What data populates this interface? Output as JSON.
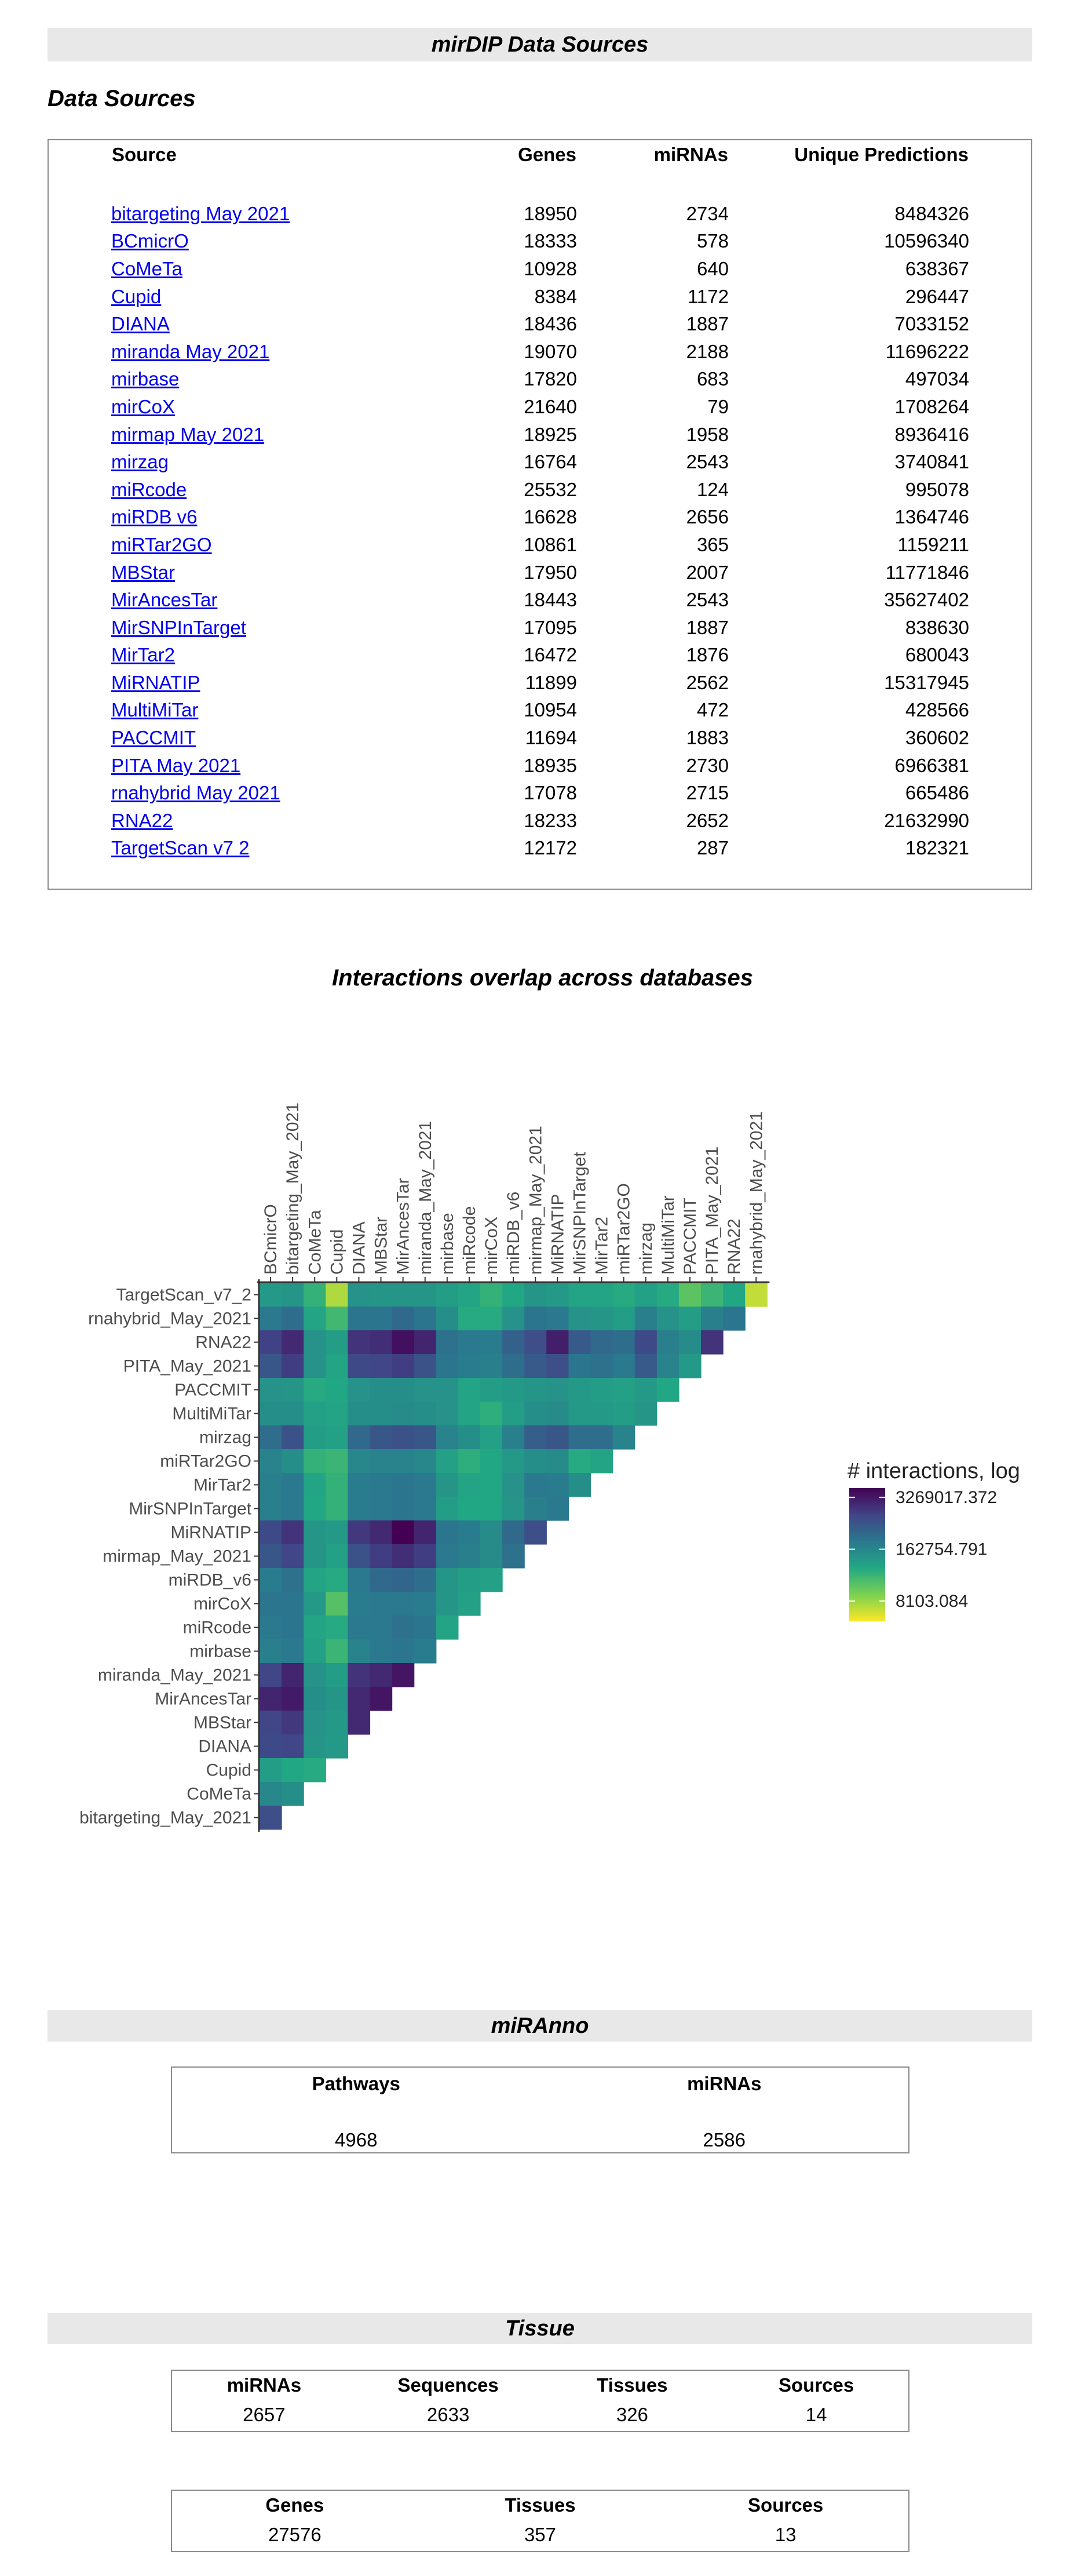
{
  "header": {
    "title": "mirDIP Data Sources"
  },
  "data_sources": {
    "subtitle": "Data Sources",
    "columns": [
      "Source",
      "Genes",
      "miRNAs",
      "Unique Predictions"
    ],
    "rows": [
      [
        "bitargeting May 2021",
        "18950",
        "2734",
        "8484326"
      ],
      [
        "BCmicrO",
        "18333",
        "578",
        "10596340"
      ],
      [
        "CoMeTa",
        "10928",
        "640",
        "638367"
      ],
      [
        "Cupid",
        "8384",
        "1172",
        "296447"
      ],
      [
        "DIANA",
        "18436",
        "1887",
        "7033152"
      ],
      [
        "miranda May 2021",
        "19070",
        "2188",
        "11696222"
      ],
      [
        "mirbase",
        "17820",
        "683",
        "497034"
      ],
      [
        "mirCoX",
        "21640",
        "79",
        "1708264"
      ],
      [
        "mirmap May 2021",
        "18925",
        "1958",
        "8936416"
      ],
      [
        "mirzag",
        "16764",
        "2543",
        "3740841"
      ],
      [
        "miRcode",
        "25532",
        "124",
        "995078"
      ],
      [
        "miRDB v6",
        "16628",
        "2656",
        "1364746"
      ],
      [
        "miRTar2GO",
        "10861",
        "365",
        "1159211"
      ],
      [
        "MBStar",
        "17950",
        "2007",
        "11771846"
      ],
      [
        "MirAncesTar",
        "18443",
        "2543",
        "35627402"
      ],
      [
        "MirSNPInTarget",
        "17095",
        "1887",
        "838630"
      ],
      [
        "MirTar2",
        "16472",
        "1876",
        "680043"
      ],
      [
        "MiRNATIP",
        "11899",
        "2562",
        "15317945"
      ],
      [
        "MultiMiTar",
        "10954",
        "472",
        "428566"
      ],
      [
        "PACCMIT",
        "11694",
        "1883",
        "360602"
      ],
      [
        "PITA May 2021",
        "18935",
        "2730",
        "6966381"
      ],
      [
        "rnahybrid May 2021",
        "17078",
        "2715",
        "665486"
      ],
      [
        "RNA22",
        "18233",
        "2652",
        "21632990"
      ],
      [
        "TargetScan v7 2",
        "12172",
        "287",
        "182321"
      ]
    ]
  },
  "overlap": {
    "title": "Interactions overlap across databases",
    "legend_title": "# interactions, log",
    "legend_labels": [
      "3269017.372",
      "162754.791",
      "8103.084"
    ],
    "legend_values": [
      3269017.372,
      162754.791,
      8103.084
    ],
    "colors": [
      "#fde725",
      "#7ad151",
      "#22a884",
      "#2a788e",
      "#414487",
      "#440154"
    ]
  },
  "chart_data": {
    "type": "heatmap",
    "x": [
      "BCmicrO",
      "bitargeting_May_2021",
      "CoMeTa",
      "Cupid",
      "DIANA",
      "MBStar",
      "MirAncesTar",
      "miranda_May_2021",
      "mirbase",
      "miRcode",
      "mirCoX",
      "miRDB_v6",
      "mirmap_May_2021",
      "MiRNATIP",
      "MirSNPInTarget",
      "MirTar2",
      "miRTar2GO",
      "mirzag",
      "MultiMiTar",
      "PACCMIT",
      "PITA_May_2021",
      "RNA22",
      "rnahybrid_May_2021"
    ],
    "y": [
      "TargetScan_v7_2",
      "rnahybrid_May_2021",
      "RNA22",
      "PITA_May_2021",
      "PACCMIT",
      "MultiMiTar",
      "mirzag",
      "miRTar2GO",
      "MirTar2",
      "MirSNPInTarget",
      "MiRNATIP",
      "mirmap_May_2021",
      "miRDB_v6",
      "mirCoX",
      "miRcode",
      "mirbase",
      "miranda_May_2021",
      "MirAncesTar",
      "MBStar",
      "DIANA",
      "Cupid",
      "CoMeTa",
      "bitargeting_May_2021"
    ],
    "values": [
      [
        4.95,
        5.0,
        4.6,
        3.8,
        5.05,
        5.0,
        5.0,
        5.0,
        4.9,
        4.8,
        4.6,
        4.75,
        5.0,
        4.95,
        4.8,
        4.8,
        4.7,
        4.85,
        4.7,
        4.3,
        4.55,
        4.75,
        3.7
      ],
      [
        5.4,
        5.55,
        4.8,
        4.5,
        5.45,
        5.45,
        5.6,
        5.45,
        5.1,
        4.7,
        4.7,
        5.05,
        5.45,
        5.4,
        5.05,
        5.0,
        4.9,
        5.3,
        5.05,
        4.9,
        5.3,
        5.45,
        null
      ],
      [
        6.1,
        6.35,
        5.05,
        4.9,
        6.25,
        6.3,
        6.6,
        6.4,
        5.5,
        5.4,
        5.35,
        5.7,
        5.95,
        6.45,
        5.8,
        5.6,
        5.55,
        6.0,
        5.3,
        5.15,
        6.25,
        null,
        null
      ],
      [
        5.85,
        6.15,
        5.05,
        4.8,
        6.0,
        6.05,
        6.15,
        5.9,
        5.45,
        5.35,
        5.3,
        5.55,
        5.8,
        5.95,
        5.45,
        5.5,
        5.4,
        5.8,
        5.25,
        4.95,
        null,
        null,
        null
      ],
      [
        5.05,
        5.0,
        4.7,
        4.75,
        5.05,
        5.1,
        5.1,
        5.05,
        5.05,
        4.8,
        4.9,
        4.95,
        5.0,
        5.05,
        4.95,
        4.9,
        4.85,
        4.95,
        4.75,
        null,
        null,
        null,
        null
      ],
      [
        5.1,
        5.1,
        4.85,
        4.8,
        5.1,
        5.1,
        5.15,
        5.1,
        5.05,
        4.8,
        4.65,
        4.9,
        5.1,
        5.15,
        4.95,
        4.95,
        4.9,
        5.0,
        null,
        null,
        null,
        null,
        null
      ],
      [
        5.55,
        5.9,
        4.9,
        4.85,
        5.6,
        5.85,
        5.9,
        5.85,
        5.25,
        5.1,
        4.85,
        5.3,
        5.75,
        5.85,
        5.55,
        5.55,
        5.25,
        null,
        null,
        null,
        null,
        null,
        null
      ],
      [
        5.25,
        5.1,
        4.6,
        4.55,
        5.2,
        5.25,
        5.25,
        5.2,
        4.85,
        4.65,
        4.75,
        4.95,
        5.1,
        5.15,
        4.7,
        4.8,
        null,
        null,
        null,
        null,
        null,
        null,
        null
      ],
      [
        5.3,
        5.4,
        4.8,
        4.6,
        5.35,
        5.4,
        5.45,
        5.4,
        5.0,
        4.8,
        4.75,
        5.05,
        5.4,
        5.35,
        5.1,
        null,
        null,
        null,
        null,
        null,
        null,
        null,
        null
      ],
      [
        5.3,
        5.4,
        4.75,
        4.6,
        5.35,
        5.4,
        5.45,
        5.4,
        4.9,
        4.75,
        4.75,
        5.0,
        5.3,
        5.4,
        null,
        null,
        null,
        null,
        null,
        null,
        null,
        null,
        null
      ],
      [
        6.0,
        6.25,
        5.0,
        4.95,
        6.2,
        6.35,
        6.75,
        6.4,
        5.45,
        5.35,
        5.15,
        5.6,
        5.95,
        null,
        null,
        null,
        null,
        null,
        null,
        null,
        null,
        null,
        null
      ],
      [
        5.85,
        6.05,
        5.0,
        4.85,
        5.9,
        6.15,
        6.3,
        6.15,
        5.4,
        5.3,
        5.15,
        5.5,
        null,
        null,
        null,
        null,
        null,
        null,
        null,
        null,
        null,
        null,
        null
      ],
      [
        5.35,
        5.5,
        4.8,
        4.7,
        5.4,
        5.6,
        5.65,
        5.55,
        5.0,
        4.9,
        4.85,
        null,
        null,
        null,
        null,
        null,
        null,
        null,
        null,
        null,
        null,
        null,
        null
      ],
      [
        5.45,
        5.45,
        4.95,
        4.35,
        5.35,
        5.4,
        5.4,
        5.35,
        5.0,
        4.85,
        null,
        null,
        null,
        null,
        null,
        null,
        null,
        null,
        null,
        null,
        null,
        null,
        null
      ],
      [
        5.4,
        5.45,
        4.8,
        4.7,
        5.4,
        5.4,
        5.5,
        5.45,
        4.8,
        null,
        null,
        null,
        null,
        null,
        null,
        null,
        null,
        null,
        null,
        null,
        null,
        null,
        null
      ],
      [
        5.3,
        5.4,
        4.85,
        4.55,
        5.25,
        5.4,
        5.45,
        5.35,
        null,
        null,
        null,
        null,
        null,
        null,
        null,
        null,
        null,
        null,
        null,
        null,
        null,
        null,
        null
      ],
      [
        6.05,
        6.4,
        5.05,
        4.9,
        6.25,
        6.35,
        6.55,
        null,
        null,
        null,
        null,
        null,
        null,
        null,
        null,
        null,
        null,
        null,
        null,
        null,
        null,
        null,
        null
      ],
      [
        6.4,
        6.5,
        5.1,
        5.0,
        6.35,
        6.55,
        null,
        null,
        null,
        null,
        null,
        null,
        null,
        null,
        null,
        null,
        null,
        null,
        null,
        null,
        null,
        null,
        null
      ],
      [
        6.05,
        6.2,
        5.05,
        4.95,
        6.35,
        null,
        null,
        null,
        null,
        null,
        null,
        null,
        null,
        null,
        null,
        null,
        null,
        null,
        null,
        null,
        null,
        null,
        null
      ],
      [
        6.0,
        6.05,
        5.0,
        4.95,
        null,
        null,
        null,
        null,
        null,
        null,
        null,
        null,
        null,
        null,
        null,
        null,
        null,
        null,
        null,
        null,
        null,
        null,
        null
      ],
      [
        4.9,
        4.75,
        4.7,
        null,
        null,
        null,
        null,
        null,
        null,
        null,
        null,
        null,
        null,
        null,
        null,
        null,
        null,
        null,
        null,
        null,
        null,
        null,
        null
      ],
      [
        5.2,
        5.1,
        null,
        null,
        null,
        null,
        null,
        null,
        null,
        null,
        null,
        null,
        null,
        null,
        null,
        null,
        null,
        null,
        null,
        null,
        null,
        null,
        null
      ],
      [
        5.95,
        null,
        null,
        null,
        null,
        null,
        null,
        null,
        null,
        null,
        null,
        null,
        null,
        null,
        null,
        null,
        null,
        null,
        null,
        null,
        null,
        null,
        null
      ]
    ],
    "value_scale": "log10(# interactions)",
    "color_range": [
      3.4,
      6.75
    ],
    "xlabel": "",
    "ylabel": "",
    "title": ""
  },
  "miranno": {
    "title": "miRAnno",
    "columns": [
      "Pathways",
      "miRNAs"
    ],
    "values": [
      "4968",
      "2586"
    ]
  },
  "tissue": {
    "title": "Tissue",
    "table1": {
      "columns": [
        "miRNAs",
        "Sequences",
        "Tissues",
        "Sources"
      ],
      "values": [
        "2657",
        "2633",
        "326",
        "14"
      ]
    },
    "table2": {
      "columns": [
        "Genes",
        "Tissues",
        "Sources"
      ],
      "values": [
        "27576",
        "357",
        "13"
      ]
    }
  }
}
